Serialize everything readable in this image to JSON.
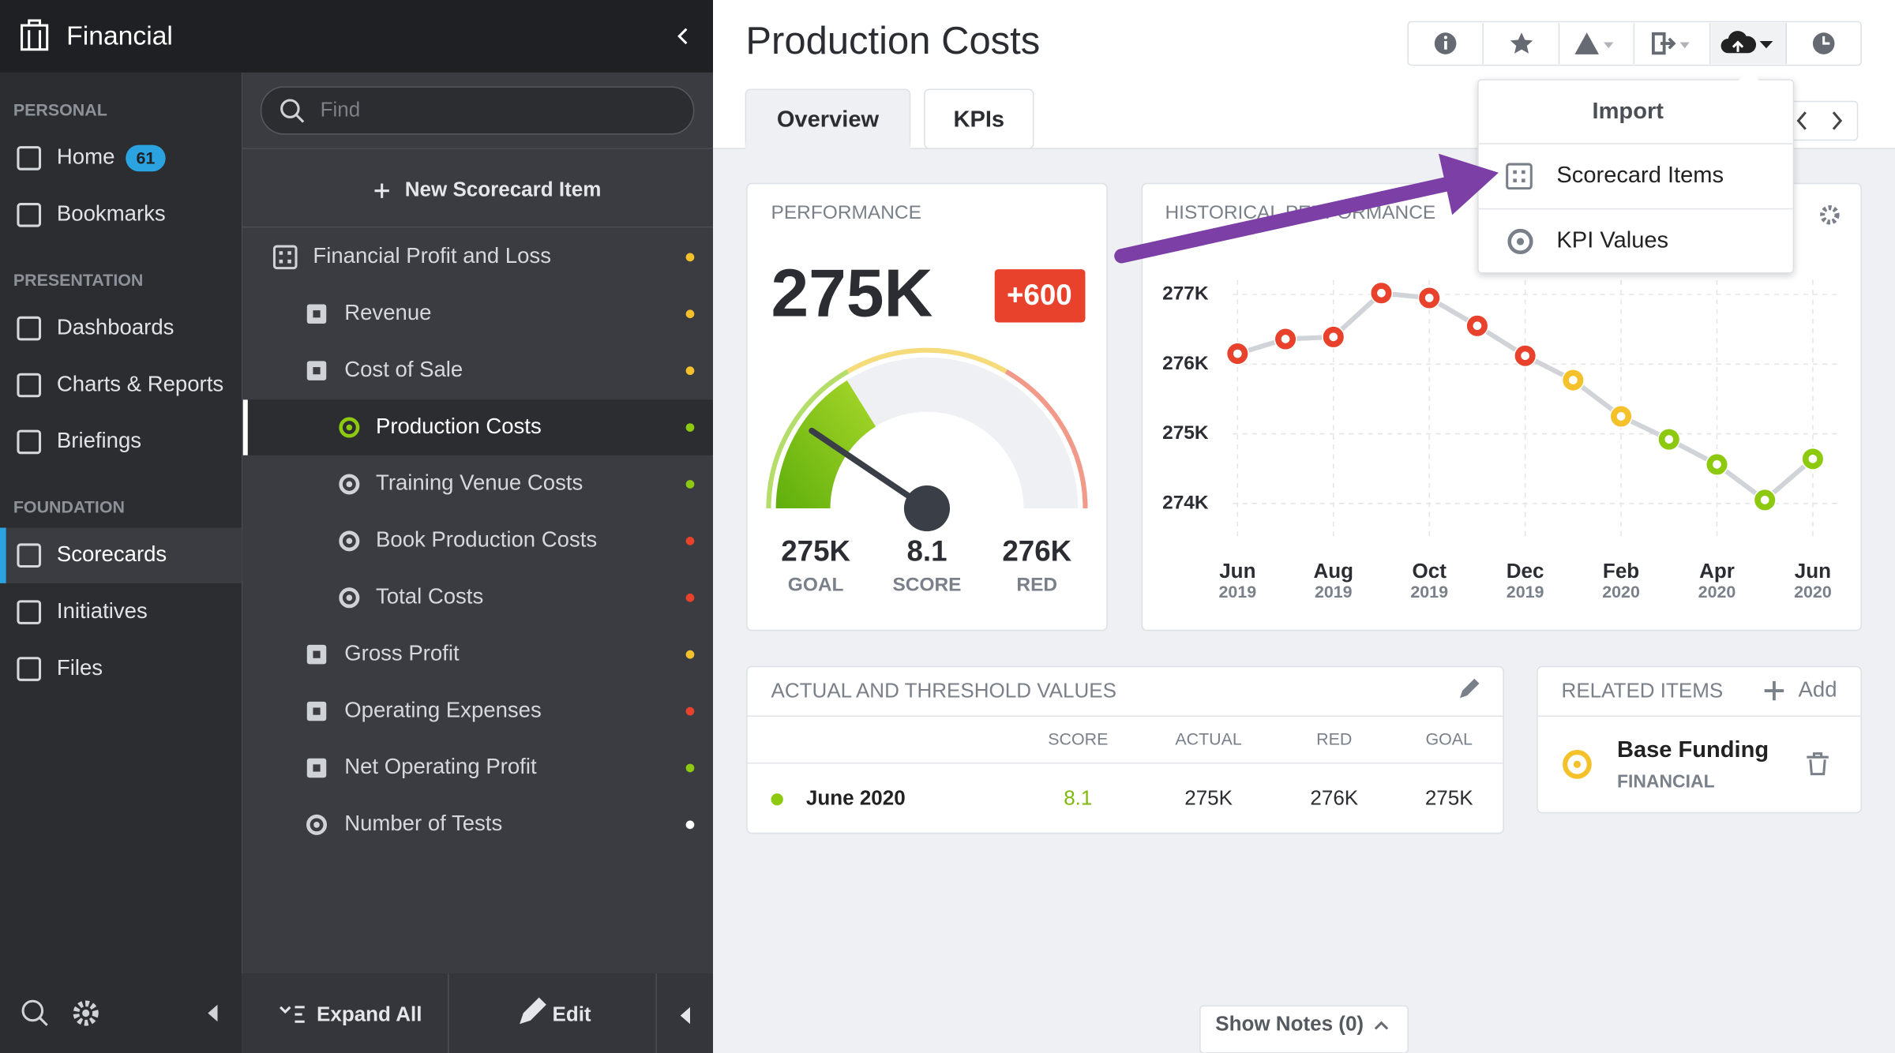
{
  "sidebar": {
    "app_title": "Financial",
    "sections": [
      {
        "heading": "PERSONAL",
        "items": [
          {
            "label": "Home",
            "badge": "61"
          },
          {
            "label": "Bookmarks"
          }
        ]
      },
      {
        "heading": "PRESENTATION",
        "items": [
          {
            "label": "Dashboards"
          },
          {
            "label": "Charts & Reports"
          },
          {
            "label": "Briefings"
          }
        ]
      },
      {
        "heading": "FOUNDATION",
        "items": [
          {
            "label": "Scorecards",
            "selected": true
          },
          {
            "label": "Initiatives"
          },
          {
            "label": "Files"
          }
        ]
      }
    ]
  },
  "tree": {
    "search_placeholder": "Find",
    "new_item": "New Scorecard Item",
    "items": [
      {
        "label": "Financial Profit and Loss",
        "level": 0,
        "icon": "scorecard",
        "color": "#f4c12a"
      },
      {
        "label": "Revenue",
        "level": 1,
        "icon": "objective",
        "color": "#f4c12a"
      },
      {
        "label": "Cost of Sale",
        "level": 1,
        "icon": "objective",
        "color": "#f4c12a"
      },
      {
        "label": "Production Costs",
        "level": 2,
        "icon": "kpi",
        "color": "#8cc90f",
        "selected": true
      },
      {
        "label": "Training Venue Costs",
        "level": 2,
        "icon": "kpi",
        "color": "#8cc90f"
      },
      {
        "label": "Book Production Costs",
        "level": 2,
        "icon": "kpi",
        "color": "#e8412c"
      },
      {
        "label": "Total Costs",
        "level": 2,
        "icon": "kpi",
        "color": "#e8412c"
      },
      {
        "label": "Gross Profit",
        "level": 1,
        "icon": "objective",
        "color": "#f4c12a"
      },
      {
        "label": "Operating Expenses",
        "level": 1,
        "icon": "objective",
        "color": "#e8412c"
      },
      {
        "label": "Net Operating Profit",
        "level": 1,
        "icon": "objective",
        "color": "#8cc90f"
      },
      {
        "label": "Number of Tests",
        "level": 1,
        "icon": "kpi",
        "color": "#ffffff"
      }
    ],
    "expand_all": "Expand All",
    "edit": "Edit"
  },
  "header": {
    "title": "Production Costs",
    "tabs": [
      "Overview",
      "KPIs"
    ]
  },
  "dropdown": {
    "title": "Import",
    "items": [
      "Scorecard Items",
      "KPI Values"
    ]
  },
  "performance": {
    "heading": "PERFORMANCE",
    "value": "275K",
    "change": "+600",
    "stats": [
      {
        "value": "275K",
        "label": "GOAL"
      },
      {
        "value": "8.1",
        "label": "SCORE"
      },
      {
        "value": "276K",
        "label": "RED"
      }
    ]
  },
  "chart_data": {
    "type": "line",
    "title": "HISTORICAL PERFORMANCE",
    "months": [
      "Jun",
      null,
      "Aug",
      null,
      "Oct",
      null,
      "Dec",
      null,
      "Feb",
      null,
      "Apr",
      null,
      "Jun"
    ],
    "years": [
      "2019",
      null,
      "2019",
      null,
      "2019",
      null,
      "2019",
      null,
      "2020",
      null,
      "2020",
      null,
      "2020"
    ],
    "values": [
      276150,
      276360,
      276390,
      277020,
      276950,
      276550,
      276120,
      275770,
      275250,
      274920,
      274560,
      274050,
      274640
    ],
    "point_colors": [
      "#e8412c",
      "#e8412c",
      "#e8412c",
      "#e8412c",
      "#e8412c",
      "#e8412c",
      "#e8412c",
      "#f4c12a",
      "#f4c12a",
      "#8cc90f",
      "#8cc90f",
      "#8cc90f",
      "#8cc90f"
    ],
    "ylim": [
      273600,
      277240
    ],
    "yticks": [
      {
        "value": 274000,
        "label": "274K"
      },
      {
        "value": 275000,
        "label": "275K"
      },
      {
        "value": 276000,
        "label": "276K"
      },
      {
        "value": 277000,
        "label": "277K"
      }
    ],
    "grid": true
  },
  "table": {
    "heading": "ACTUAL AND THRESHOLD VALUES",
    "columns": [
      "SCORE",
      "ACTUAL",
      "RED",
      "GOAL"
    ],
    "rows": [
      {
        "label": "June 2020",
        "cells": [
          "8.1",
          "275K",
          "276K",
          "275K"
        ]
      }
    ]
  },
  "related": {
    "heading": "RELATED ITEMS",
    "add": "Add",
    "items": [
      {
        "name": "Base Funding",
        "type": "FINANCIAL"
      }
    ]
  },
  "notes": "Show Notes (0)"
}
